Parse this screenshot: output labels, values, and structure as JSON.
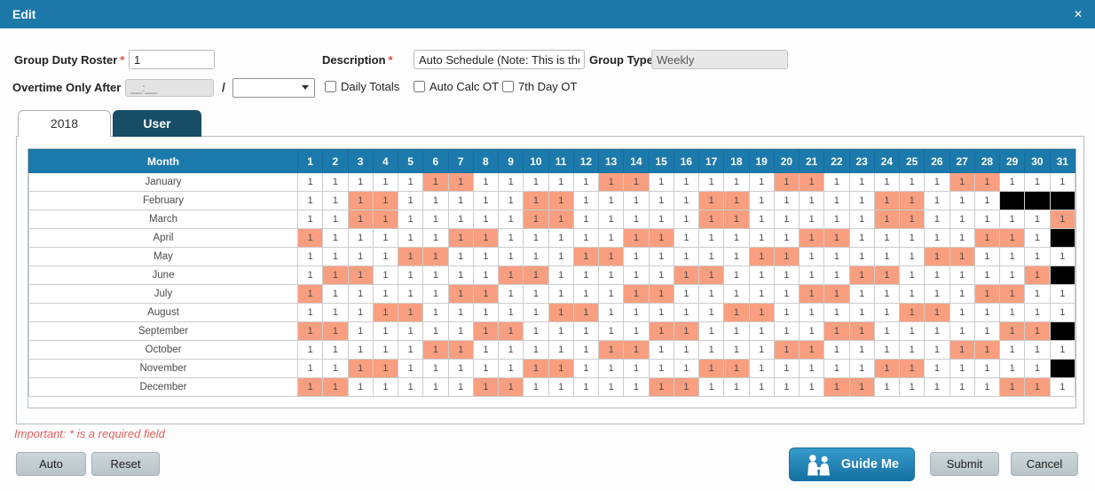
{
  "header": {
    "title": "Edit",
    "close_glyph": "✕"
  },
  "form": {
    "group_duty_roster": {
      "label": "Group Duty Roster",
      "required_mark": "*",
      "value": "1"
    },
    "description": {
      "label": "Description",
      "required_mark": "*",
      "value": "Auto Schedule (Note: This is the"
    },
    "group_type": {
      "label": "Group Type",
      "value": "Weekly"
    },
    "overtime": {
      "label": "Overtime Only After",
      "masked_value": "__:__",
      "separator": "/",
      "select_value": ""
    },
    "checkboxes": [
      {
        "label": "Daily Totals",
        "checked": false
      },
      {
        "label": "Auto Calc OT",
        "checked": false
      },
      {
        "label": "7th Day OT",
        "checked": false
      }
    ]
  },
  "tabs": [
    {
      "label": "2018",
      "active": true
    },
    {
      "label": "User",
      "active": false
    }
  ],
  "table": {
    "month_header": "Month",
    "days": [
      1,
      2,
      3,
      4,
      5,
      6,
      7,
      8,
      9,
      10,
      11,
      12,
      13,
      14,
      15,
      16,
      17,
      18,
      19,
      20,
      21,
      22,
      23,
      24,
      25,
      26,
      27,
      28,
      29,
      30,
      31
    ],
    "cell_value": "1",
    "rows": [
      {
        "month": "January",
        "weekend_days": [
          6,
          7,
          13,
          14,
          20,
          21,
          27,
          28
        ],
        "invalid_days": []
      },
      {
        "month": "February",
        "weekend_days": [
          3,
          4,
          10,
          11,
          17,
          18,
          24,
          25
        ],
        "invalid_days": [
          29,
          30,
          31
        ]
      },
      {
        "month": "March",
        "weekend_days": [
          3,
          4,
          10,
          11,
          17,
          18,
          24,
          25,
          31
        ],
        "invalid_days": []
      },
      {
        "month": "April",
        "weekend_days": [
          1,
          7,
          8,
          14,
          15,
          21,
          22,
          28,
          29
        ],
        "invalid_days": [
          31
        ]
      },
      {
        "month": "May",
        "weekend_days": [
          5,
          6,
          12,
          13,
          19,
          20,
          26,
          27
        ],
        "invalid_days": []
      },
      {
        "month": "June",
        "weekend_days": [
          2,
          3,
          9,
          10,
          16,
          17,
          23,
          24,
          30
        ],
        "invalid_days": [
          31
        ]
      },
      {
        "month": "July",
        "weekend_days": [
          1,
          7,
          8,
          14,
          15,
          21,
          22,
          28,
          29
        ],
        "invalid_days": []
      },
      {
        "month": "August",
        "weekend_days": [
          4,
          5,
          11,
          12,
          18,
          19,
          25,
          26
        ],
        "invalid_days": []
      },
      {
        "month": "September",
        "weekend_days": [
          1,
          2,
          8,
          9,
          15,
          16,
          22,
          23,
          29,
          30
        ],
        "invalid_days": [
          31
        ]
      },
      {
        "month": "October",
        "weekend_days": [
          6,
          7,
          13,
          14,
          20,
          21,
          27,
          28
        ],
        "invalid_days": []
      },
      {
        "month": "November",
        "weekend_days": [
          3,
          4,
          10,
          11,
          17,
          18,
          24,
          25
        ],
        "invalid_days": [
          31
        ]
      },
      {
        "month": "December",
        "weekend_days": [
          1,
          2,
          8,
          9,
          15,
          16,
          22,
          23,
          29,
          30
        ],
        "invalid_days": []
      }
    ]
  },
  "footer": {
    "note": "Important: * is a required field",
    "auto_label": "Auto",
    "reset_label": "Reset",
    "guide_me_label": "Guide Me",
    "submit_label": "Submit",
    "cancel_label": "Cancel"
  },
  "colors": {
    "accent_blue": "#1b78a9",
    "tab_inactive_blue": "#174e66",
    "weekend_orange": "#f99f80",
    "invalid_black": "#000000",
    "required_red": "#e04b3f",
    "button_gray": "#bfcbcf",
    "guide_me_blue": "#1e82b6"
  }
}
